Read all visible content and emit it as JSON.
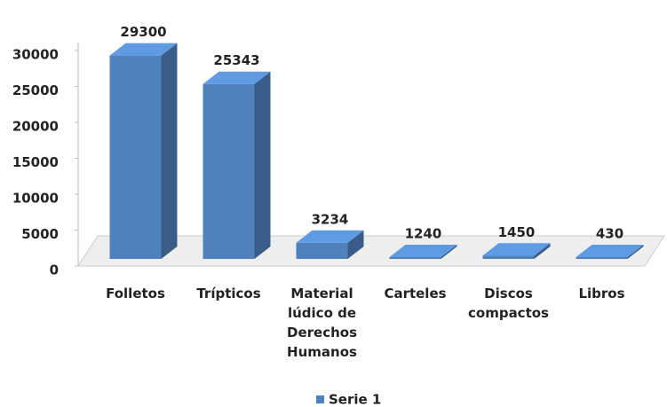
{
  "chart_data": {
    "type": "bar3d",
    "categories": [
      "Folletos",
      "Trípticos",
      "Material lúdico de Derechos Humanos",
      "Carteles",
      "Discos compactos",
      "Libros"
    ],
    "series": [
      {
        "name": "Serie 1",
        "color": "#4f81bd",
        "values": [
          29300,
          25343,
          3234,
          1240,
          1450,
          430
        ]
      }
    ],
    "ylim": [
      0,
      30000
    ],
    "yticks": [
      0,
      5000,
      10000,
      15000,
      20000,
      25000,
      30000
    ]
  }
}
